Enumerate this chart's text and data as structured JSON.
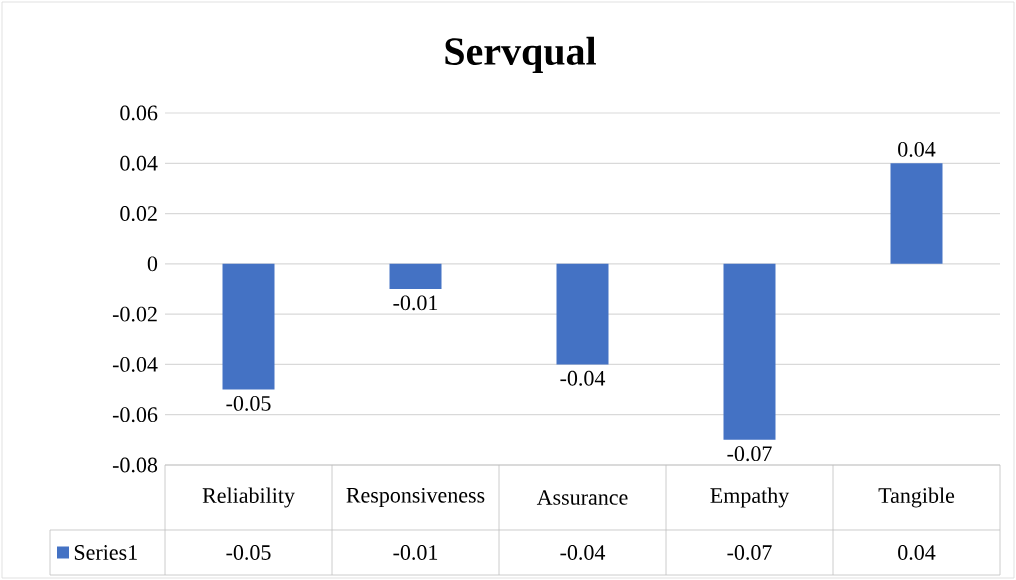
{
  "chart_data": {
    "type": "bar",
    "title": "Servqual",
    "categories": [
      "Reliability",
      "Responsiveness",
      "Assurance",
      "Empathy",
      "Tangible"
    ],
    "series": [
      {
        "name": "Series1",
        "color": "#4472c4",
        "values": [
          -0.05,
          -0.01,
          -0.04,
          -0.07,
          0.04
        ],
        "value_labels": [
          "-0.05",
          "-0.01",
          "-0.04",
          "-0.07",
          "0.04"
        ]
      }
    ],
    "ylim": [
      -0.08,
      0.06
    ],
    "yticks": [
      -0.08,
      -0.06,
      -0.04,
      -0.02,
      0,
      0.02,
      0.04,
      0.06
    ],
    "grid": "y",
    "legend": "bottom"
  }
}
